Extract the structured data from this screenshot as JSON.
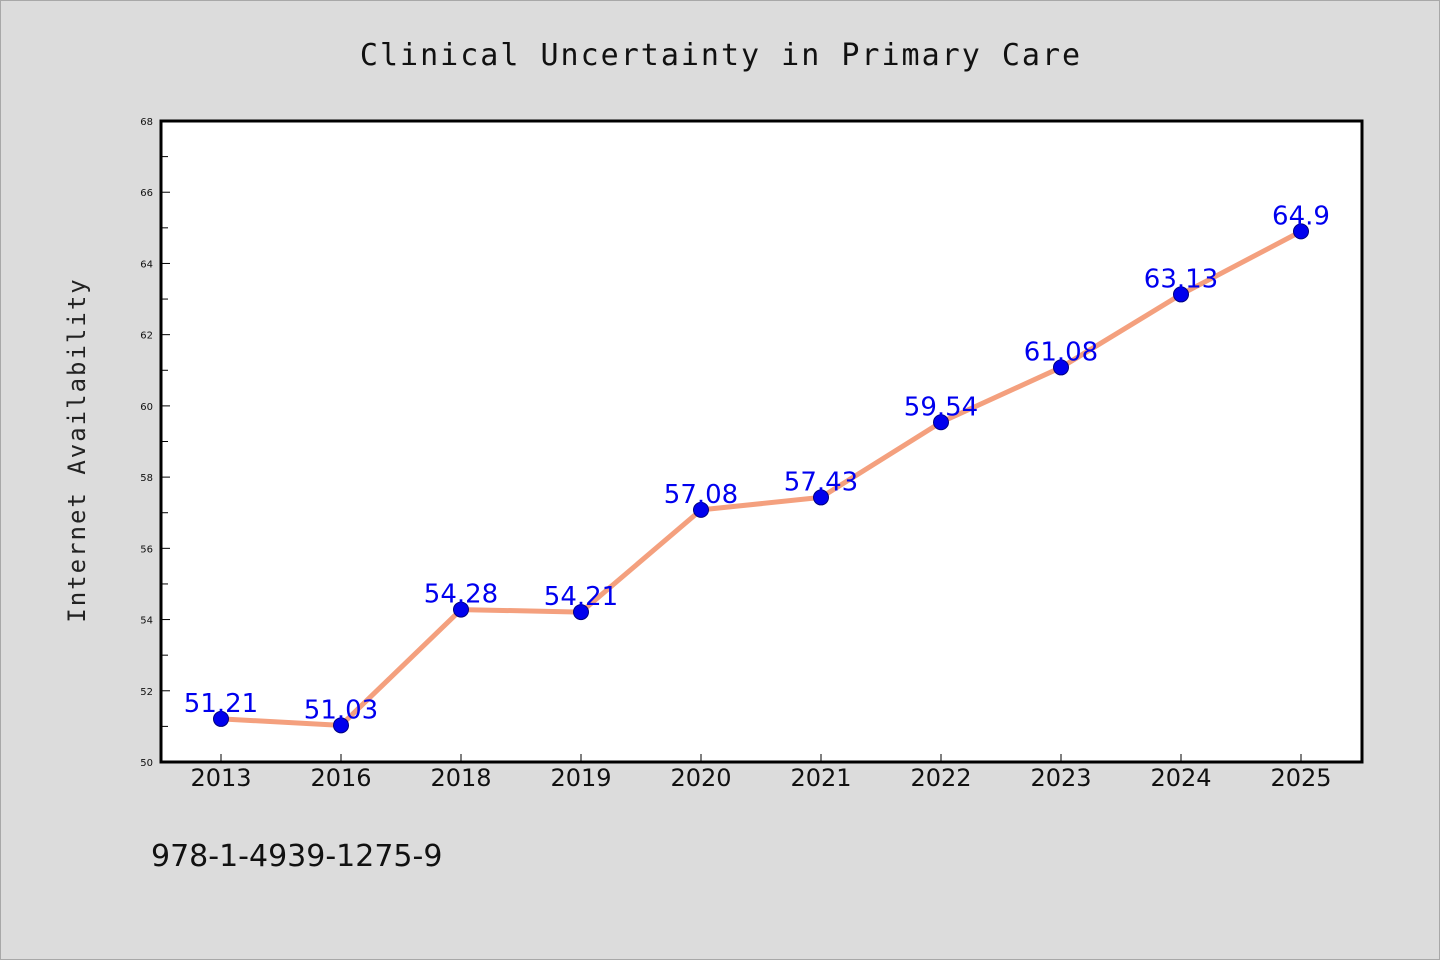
{
  "chart_data": {
    "type": "line",
    "title": "Clinical Uncertainty in Primary Care",
    "xlabel": "",
    "ylabel": "Internet Availability",
    "categories": [
      "2013",
      "2016",
      "2018",
      "2019",
      "2020",
      "2021",
      "2022",
      "2023",
      "2024",
      "2025"
    ],
    "series": [
      {
        "values": [
          51.21,
          51.03,
          54.28,
          54.21,
          57.08,
          57.43,
          59.54,
          61.08,
          63.13,
          64.9
        ],
        "labels": [
          "51.21",
          "51.03",
          "54.28",
          "54.21",
          "57.08",
          "57.43",
          "59.54",
          "61.08",
          "63.13",
          "64.9"
        ]
      }
    ],
    "ylim": [
      50,
      68
    ],
    "yticks": [
      "50",
      "52",
      "54",
      "56",
      "58",
      "60",
      "62",
      "64",
      "66",
      "68"
    ],
    "grid": false,
    "legend": "none",
    "colors": {
      "line": "#f4a07e",
      "marker": "#0000ee",
      "marker_edge": "#000080",
      "data_label": "#0000ee",
      "plot_background": "#ffffff",
      "figure_background": "#dcdcdc"
    }
  },
  "footer": {
    "isbn": "978-1-4939-1275-9"
  }
}
